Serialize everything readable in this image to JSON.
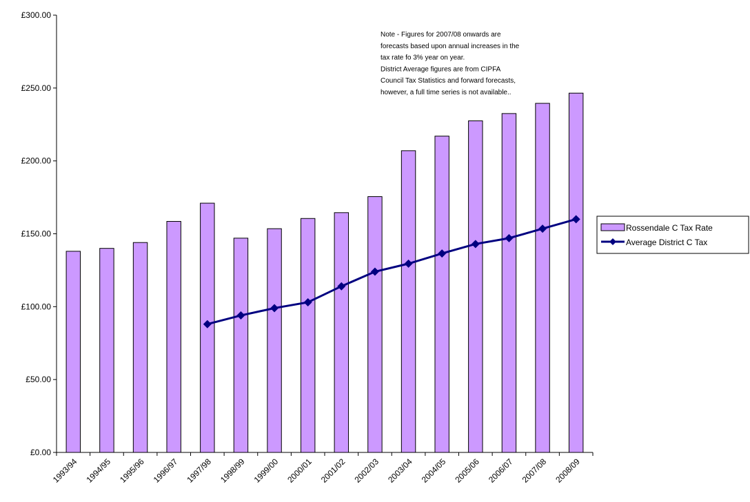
{
  "chart_data": {
    "type": "bar_line",
    "categories": [
      "1993/94",
      "1994/95",
      "1995/96",
      "1996/97",
      "1997/98",
      "1998/99",
      "1999/00",
      "2000/01",
      "2001/02",
      "2002/03",
      "2003/04",
      "2004/05",
      "2005/06",
      "2006/07",
      "2007/08",
      "2008/09"
    ],
    "series": [
      {
        "name": "Rossendale C Tax Rate",
        "type": "bar",
        "color": "#cc99ff",
        "values": [
          138,
          140,
          144,
          158.5,
          171,
          147,
          153.5,
          160.5,
          164.5,
          175.5,
          207,
          217,
          227.5,
          232.5,
          239.5,
          246.5
        ]
      },
      {
        "name": "Average District C Tax",
        "type": "line",
        "color": "#000080",
        "values": [
          null,
          null,
          null,
          null,
          88,
          94,
          99,
          103,
          114,
          124,
          129.5,
          136.5,
          143,
          147,
          153.5,
          160
        ]
      }
    ],
    "ylim": [
      0,
      300
    ],
    "yticks": [
      {
        "value": 0,
        "label": "£0.00"
      },
      {
        "value": 50,
        "label": "£50.00"
      },
      {
        "value": 100,
        "label": "£100.00"
      },
      {
        "value": 150,
        "label": "£150.00"
      },
      {
        "value": 200,
        "label": "£200.00"
      },
      {
        "value": 250,
        "label": "£250.00"
      },
      {
        "value": 300,
        "label": "£300.00"
      }
    ],
    "grid": false,
    "legend": "right",
    "annotation": [
      "Note - Figures for 2007/08 onwards are",
      "forecasts based upon annual increases in the",
      "tax rate fo 3% year on year.",
      "District Average figures are from CIPFA",
      "Council Tax Statistics and forward forecasts,",
      "however, a full time series is not available.."
    ]
  }
}
